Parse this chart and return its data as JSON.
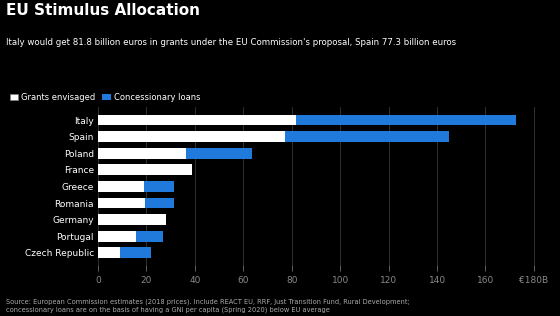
{
  "title": "EU Stimulus Allocation",
  "subtitle": "Italy would get 81.8 billion euros in grants under the EU Commission's proposal, Spain 77.3 billion euros",
  "source": "Source: European Commission estimates (2018 prices). Include REACT EU, RRF, Just Transition Fund, Rural Development;\nconcessionary loans are on the basis of having a GNI per capita (Spring 2020) below EU average",
  "countries": [
    "Italy",
    "Spain",
    "Poland",
    "France",
    "Greece",
    "Romania",
    "Germany",
    "Portugal",
    "Czech Republic"
  ],
  "grants": [
    81.8,
    77.3,
    36.4,
    39.0,
    19.0,
    19.6,
    27.9,
    15.5,
    9.0
  ],
  "loans": [
    90.9,
    67.8,
    27.4,
    0.0,
    12.5,
    11.9,
    0.0,
    11.5,
    13.0
  ],
  "bar_height": 0.65,
  "grants_color": "#ffffff",
  "loans_color": "#1f7adb",
  "background_color": "#000000",
  "text_color": "#ffffff",
  "x_ticks": [
    0,
    20,
    40,
    60,
    80,
    100,
    120,
    140,
    160,
    180
  ],
  "x_tick_labels": [
    "0",
    "20",
    "40",
    "60",
    "80",
    "100",
    "120",
    "140",
    "160",
    "€180B"
  ]
}
